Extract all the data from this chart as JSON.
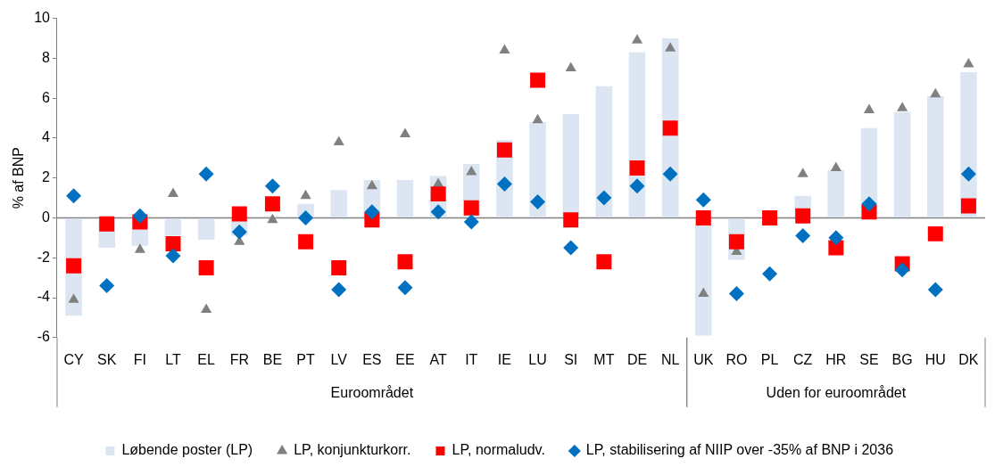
{
  "chart_data": {
    "type": "bar",
    "ylabel": "% af BNP",
    "categories": [
      "CY",
      "SK",
      "FI",
      "LT",
      "EL",
      "FR",
      "BE",
      "PT",
      "LV",
      "ES",
      "EE",
      "AT",
      "IT",
      "IE",
      "LU",
      "SI",
      "MT",
      "DE",
      "NL",
      "UK",
      "RO",
      "PL",
      "CZ",
      "HR",
      "SE",
      "BG",
      "HU",
      "DK"
    ],
    "series": [
      {
        "name": "Løbende poster (LP)",
        "color": "#dce6f2",
        "values": [
          -4.9,
          -1.5,
          -1.4,
          -0.9,
          -1.1,
          -0.9,
          0.1,
          0.7,
          1.4,
          1.9,
          1.9,
          2.1,
          2.7,
          3.9,
          4.8,
          5.2,
          6.6,
          8.3,
          9.0,
          -5.9,
          -2.1,
          0.0,
          1.1,
          2.4,
          4.5,
          5.3,
          6.1,
          7.3
        ]
      },
      {
        "name": "LP, konjunkturkorr.",
        "type": "scatter",
        "marker": "triangle",
        "color": "#808080",
        "values": [
          -4.1,
          null,
          -1.6,
          1.2,
          -4.6,
          -1.2,
          -0.1,
          1.1,
          3.8,
          1.6,
          4.2,
          1.7,
          2.3,
          8.4,
          4.9,
          7.5,
          null,
          8.9,
          8.5,
          -3.8,
          -1.7,
          null,
          2.2,
          2.5,
          5.4,
          5.5,
          6.2,
          7.7
        ]
      },
      {
        "name": "LP, normaludv.",
        "type": "scatter",
        "marker": "square",
        "color": "#ff0000",
        "values": [
          -2.4,
          -0.3,
          -0.2,
          -1.3,
          -2.5,
          0.2,
          0.7,
          -1.2,
          -2.5,
          -0.1,
          -2.2,
          1.2,
          0.5,
          3.4,
          6.9,
          -0.1,
          -2.2,
          2.5,
          4.5,
          0.0,
          -1.2,
          0.0,
          0.1,
          -1.5,
          0.3,
          -2.3,
          -0.8,
          0.6
        ]
      },
      {
        "name": "LP, stabilisering af NIIP over -35% af BNP i 2036",
        "type": "scatter",
        "marker": "diamond",
        "color": "#0070c0",
        "values": [
          1.1,
          -3.4,
          0.1,
          -1.9,
          2.2,
          -0.7,
          1.6,
          0.0,
          -3.6,
          0.3,
          -3.5,
          0.3,
          -0.2,
          1.7,
          0.8,
          -1.5,
          1.0,
          1.6,
          2.2,
          0.9,
          -3.8,
          -2.8,
          -0.9,
          -1.0,
          0.7,
          -2.6,
          -3.6,
          2.2
        ]
      }
    ],
    "ylim": [
      -6,
      10
    ],
    "yticks": [
      -6,
      -4,
      -2,
      0,
      2,
      4,
      6,
      8,
      10
    ],
    "ref_lines": [
      {
        "axis": "y",
        "value": 0,
        "color": "#808080"
      }
    ],
    "annotations": [
      "Euroområdet",
      "Uden for euroområdet"
    ],
    "legend": "bottom",
    "grid": false
  }
}
